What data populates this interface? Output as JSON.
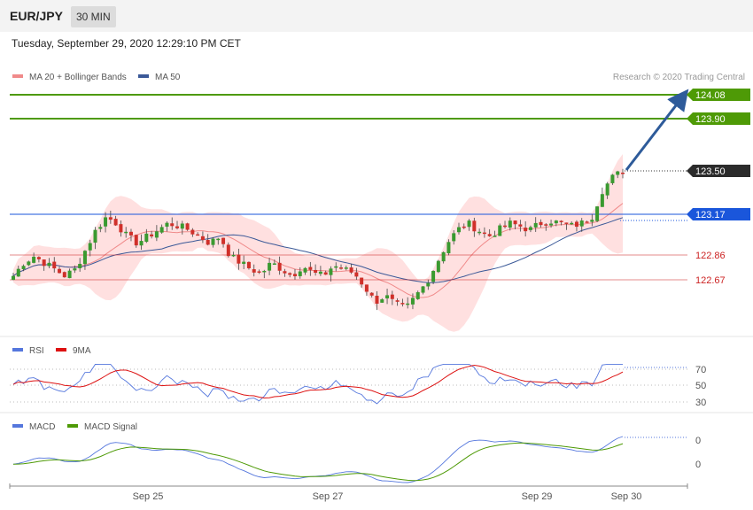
{
  "header": {
    "symbol": "EUR/JPY",
    "timeframe": "30 MIN"
  },
  "datetime": "Tuesday, September 29, 2020 12:29:10 PM CET",
  "colors": {
    "bullish": "#3a9a30",
    "bearish": "#d0302a",
    "band_fill": "#ffd6d6",
    "ma20": "#f08a8a",
    "ma50": "#3b5998",
    "resistance": "#4e9a06",
    "support_blue": "#1a56db",
    "support_red": "#cc2222",
    "current": "#2b2b2b",
    "arrow": "#2e5b9a",
    "rsi": "#5577dd",
    "rsi_ma": "#dd1111",
    "macd": "#5577dd",
    "macd_signal": "#4e9a06"
  },
  "main_chart": {
    "legend": [
      {
        "label": "MA 20 + Bollinger Bands",
        "color": "#f08a8a"
      },
      {
        "label": "MA 50",
        "color": "#3b5998"
      }
    ],
    "watermark": "Research © 2020 Trading Central",
    "price_levels": [
      {
        "value": 124.08,
        "label": "124.08",
        "kind": "resistance"
      },
      {
        "value": 123.9,
        "label": "123.90",
        "kind": "resistance"
      },
      {
        "value": 123.5,
        "label": "123.50",
        "kind": "current"
      },
      {
        "value": 123.17,
        "label": "123.17",
        "kind": "pivot"
      },
      {
        "value": 122.86,
        "label": "122.86",
        "kind": "support"
      },
      {
        "value": 122.67,
        "label": "122.67",
        "kind": "support"
      }
    ]
  },
  "rsi_panel": {
    "legend": [
      {
        "label": "RSI",
        "color": "#5577dd"
      },
      {
        "label": "9MA",
        "color": "#dd1111"
      }
    ],
    "levels": [
      "70",
      "50",
      "30"
    ]
  },
  "macd_panel": {
    "legend": [
      {
        "label": "MACD",
        "color": "#5577dd"
      },
      {
        "label": "MACD Signal",
        "color": "#4e9a06"
      }
    ],
    "levels": [
      "0",
      "0"
    ]
  },
  "x_axis": {
    "ticks": [
      "Sep 25",
      "Sep 27",
      "Sep 29",
      "Sep 30"
    ]
  },
  "chart_data": {
    "type": "candlestick",
    "series": [
      {
        "name": "EUR/JPY",
        "close_path": [
          122.7,
          122.8,
          122.85,
          122.8,
          122.75,
          122.7,
          122.75,
          122.9,
          123.05,
          123.15,
          123.1,
          123.0,
          122.95,
          123.0,
          123.05,
          123.1,
          123.08,
          123.05,
          123.0,
          122.95,
          123.0,
          122.85,
          122.8,
          122.75,
          122.72,
          122.8,
          122.75,
          122.7,
          122.78,
          122.72,
          122.7,
          122.78,
          122.75,
          122.72,
          122.62,
          122.5,
          122.55,
          122.48,
          122.45,
          122.55,
          122.65,
          122.8,
          122.95,
          123.05,
          123.1,
          123.05,
          123.0,
          123.05,
          123.1,
          123.08,
          123.05,
          123.1,
          123.12,
          123.1,
          123.08,
          123.1,
          123.15,
          123.35,
          123.45,
          123.5
        ]
      },
      {
        "name": "MA 20"
      },
      {
        "name": "MA 50"
      }
    ],
    "price_levels": [
      124.08,
      123.9,
      123.5,
      123.17,
      122.86,
      122.67
    ],
    "target": 124.08,
    "rsi_levels": [
      70,
      50,
      30
    ],
    "x_ticks": [
      "Sep 25",
      "Sep 27",
      "Sep 29",
      "Sep 30"
    ]
  }
}
